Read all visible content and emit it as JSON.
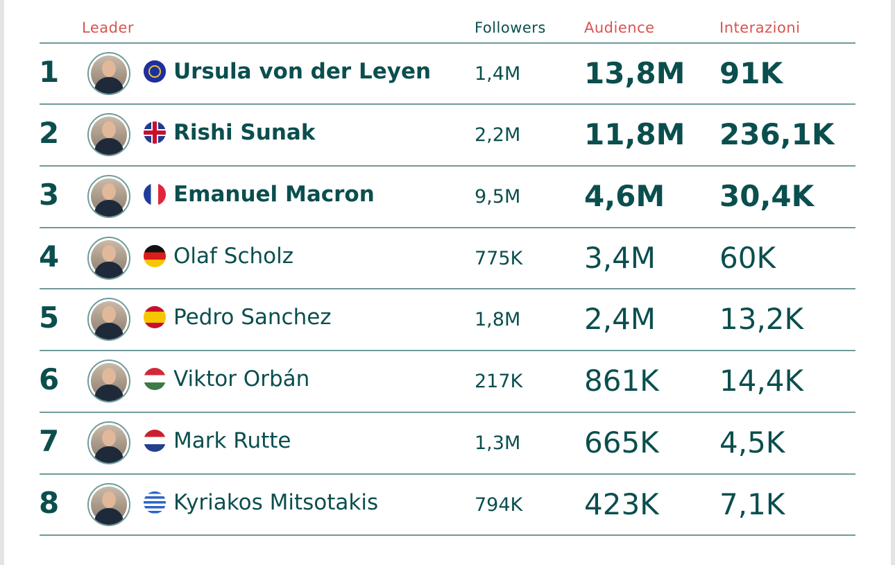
{
  "headers": {
    "leader": "Leader",
    "followers": "Followers",
    "audience": "Audience",
    "interactions": "Interazioni"
  },
  "colors": {
    "text": "#0b4e4e",
    "header_accent": "#d9534f",
    "divider": "#6f9a9a"
  },
  "rows": [
    {
      "rank": "1",
      "name": "Ursula von der Leyen",
      "flag": "eu-flag",
      "followers": "1,4M",
      "audience": "13,8M",
      "interactions": "91K",
      "bold": true
    },
    {
      "rank": "2",
      "name": "Rishi Sunak",
      "flag": "uk-flag",
      "followers": "2,2M",
      "audience": "11,8M",
      "interactions": "236,1K",
      "bold": true
    },
    {
      "rank": "3",
      "name": "Emanuel Macron",
      "flag": "france-flag",
      "followers": "9,5M",
      "audience": "4,6M",
      "interactions": "30,4K",
      "bold": true
    },
    {
      "rank": "4",
      "name": "Olaf Scholz",
      "flag": "germany-flag",
      "followers": "775K",
      "audience": "3,4M",
      "interactions": "60K",
      "bold": false
    },
    {
      "rank": "5",
      "name": "Pedro Sanchez",
      "flag": "spain-flag",
      "followers": "1,8M",
      "audience": "2,4M",
      "interactions": "13,2K",
      "bold": false
    },
    {
      "rank": "6",
      "name": "Viktor Orbán",
      "flag": "hungary-flag",
      "followers": "217K",
      "audience": "861K",
      "interactions": "14,4K",
      "bold": false
    },
    {
      "rank": "7",
      "name": "Mark Rutte",
      "flag": "netherlands-flag",
      "followers": "1,3M",
      "audience": "665K",
      "interactions": "4,5K",
      "bold": false
    },
    {
      "rank": "8",
      "name": "Kyriakos Mitsotakis",
      "flag": "greece-flag",
      "followers": "794K",
      "audience": "423K",
      "interactions": "7,1K",
      "bold": false
    }
  ]
}
